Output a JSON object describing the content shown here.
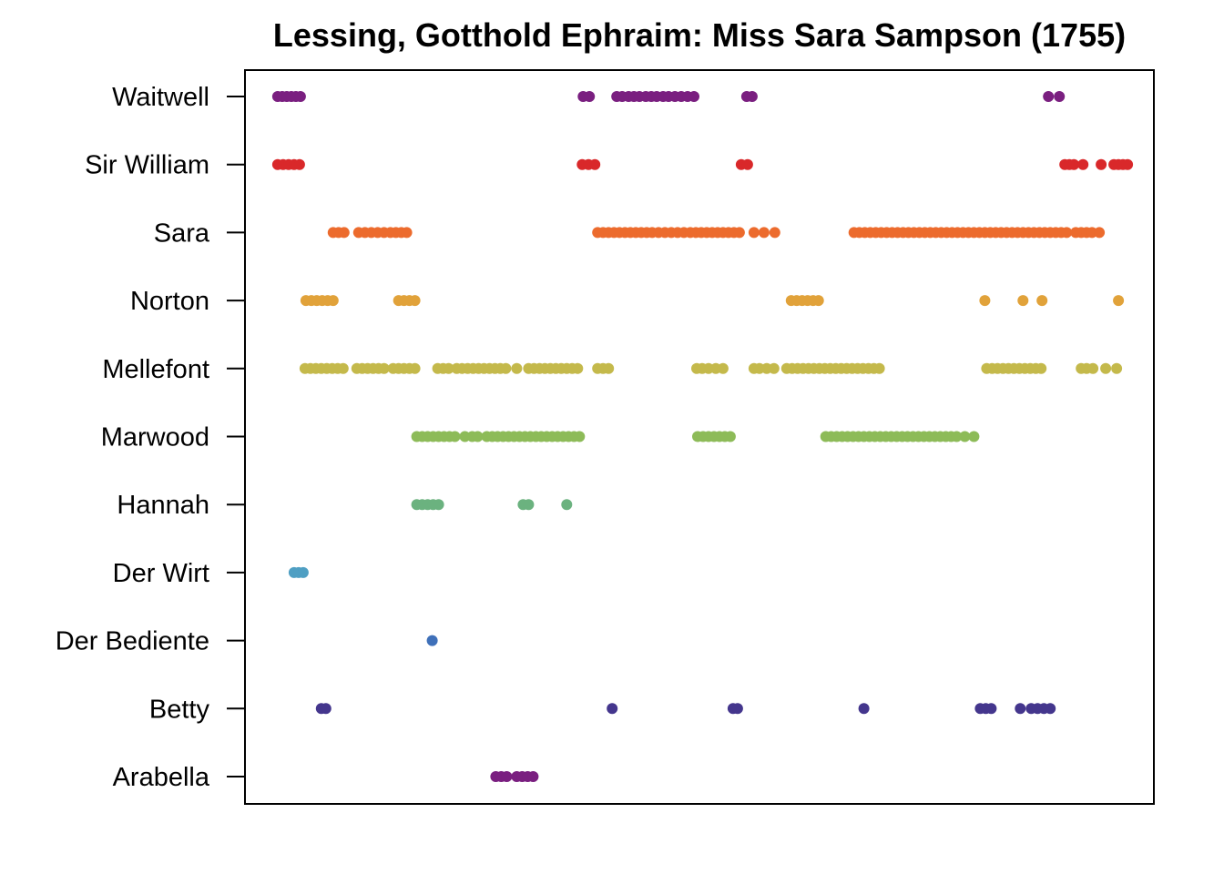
{
  "chart_data": {
    "type": "scatter",
    "title": "Lessing, Gotthold Ephraim: Miss Sara Sampson (1755)",
    "xlabel": "",
    "ylabel": "",
    "x_axis_shown": false,
    "xlim": [
      0,
      100
    ],
    "grid": false,
    "legend": "none",
    "categories": [
      "Waitwell",
      "Sir William",
      "Sara",
      "Norton",
      "Mellefont",
      "Marwood",
      "Hannah",
      "Der Wirt",
      "Der Bediente",
      "Betty",
      "Arabella"
    ],
    "series": [
      {
        "color": "#7a1f80",
        "x": [
          3.6,
          4.1,
          4.6,
          5.1,
          5.6,
          6.1,
          37.2,
          37.9,
          40.9,
          41.5,
          42.2,
          42.8,
          43.4,
          44.1,
          44.7,
          45.3,
          46.0,
          46.6,
          47.3,
          48.0,
          48.7,
          49.4,
          55.2,
          55.8,
          88.4,
          89.6
        ]
      },
      {
        "color": "#d9282a",
        "x": [
          3.6,
          4.2,
          4.8,
          5.4,
          6.0,
          37.1,
          37.8,
          38.5,
          54.6,
          55.3,
          90.2,
          90.7,
          91.2,
          92.2,
          94.2,
          95.6,
          96.1,
          96.6,
          97.1
        ]
      },
      {
        "color": "#ec6b2d",
        "x": [
          9.7,
          10.3,
          10.9,
          12.5,
          13.2,
          13.9,
          14.6,
          15.3,
          16.0,
          16.6,
          17.2,
          17.8,
          38.8,
          39.4,
          40.0,
          40.6,
          41.2,
          41.8,
          42.4,
          43.0,
          43.6,
          44.2,
          44.8,
          45.5,
          46.2,
          46.9,
          47.6,
          48.3,
          49.0,
          49.6,
          50.2,
          50.8,
          51.4,
          52.0,
          52.6,
          53.2,
          53.8,
          54.4,
          56.0,
          57.1,
          58.3,
          67.0,
          67.6,
          68.2,
          68.8,
          69.4,
          70.0,
          70.6,
          71.2,
          71.8,
          72.4,
          73.0,
          73.6,
          74.2,
          74.8,
          75.4,
          76.0,
          76.6,
          77.2,
          77.8,
          78.4,
          79.0,
          79.6,
          80.2,
          80.8,
          81.4,
          82.0,
          82.6,
          83.2,
          83.8,
          84.4,
          85.0,
          85.6,
          86.2,
          86.8,
          87.4,
          88.0,
          88.6,
          89.2,
          89.8,
          90.4,
          91.4,
          92.0,
          92.6,
          93.2,
          94.0
        ]
      },
      {
        "color": "#e1a23a",
        "x": [
          6.7,
          7.3,
          7.9,
          8.5,
          9.1,
          9.7,
          16.9,
          17.5,
          18.1,
          18.7,
          60.1,
          60.7,
          61.3,
          61.9,
          62.5,
          63.1,
          81.4,
          85.6,
          87.7,
          96.1
        ]
      },
      {
        "color": "#c4b94b",
        "x": [
          6.6,
          7.2,
          7.8,
          8.4,
          9.0,
          9.6,
          10.2,
          10.8,
          12.3,
          12.9,
          13.5,
          14.1,
          14.7,
          15.3,
          16.3,
          16.9,
          17.5,
          18.1,
          18.7,
          21.2,
          21.8,
          22.4,
          23.3,
          23.9,
          24.5,
          25.1,
          25.7,
          26.3,
          26.9,
          27.5,
          28.1,
          28.7,
          29.9,
          31.2,
          31.8,
          32.4,
          33.0,
          33.6,
          34.2,
          34.8,
          35.4,
          36.0,
          36.6,
          38.8,
          39.4,
          40.0,
          49.7,
          50.3,
          51.0,
          51.8,
          52.6,
          56.0,
          56.6,
          57.4,
          58.2,
          59.6,
          60.2,
          60.8,
          61.4,
          62.0,
          62.6,
          63.2,
          63.8,
          64.4,
          65.0,
          65.6,
          66.2,
          66.8,
          67.4,
          68.0,
          68.6,
          69.2,
          69.8,
          81.6,
          82.2,
          82.8,
          83.4,
          84.0,
          84.6,
          85.2,
          85.8,
          86.4,
          87.0,
          87.6,
          92.0,
          92.6,
          93.3,
          94.7,
          95.9
        ]
      },
      {
        "color": "#8dbb58",
        "x": [
          18.9,
          19.5,
          20.1,
          20.7,
          21.3,
          21.9,
          22.5,
          23.1,
          24.2,
          25.0,
          25.6,
          26.6,
          27.2,
          27.8,
          28.4,
          29.0,
          29.6,
          30.2,
          30.8,
          31.4,
          32.0,
          32.6,
          33.2,
          33.8,
          34.4,
          35.0,
          35.6,
          36.2,
          36.8,
          49.8,
          50.4,
          51.0,
          51.6,
          52.2,
          52.8,
          53.4,
          63.9,
          64.5,
          65.1,
          65.7,
          66.3,
          66.9,
          67.5,
          68.1,
          68.7,
          69.3,
          69.9,
          70.5,
          71.1,
          71.7,
          72.3,
          72.9,
          73.5,
          74.1,
          74.7,
          75.3,
          75.9,
          76.5,
          77.1,
          77.7,
          78.3,
          79.2,
          80.2
        ]
      },
      {
        "color": "#6bb27f",
        "x": [
          18.9,
          19.5,
          20.1,
          20.7,
          21.3,
          30.6,
          31.2,
          35.4
        ]
      },
      {
        "color": "#4f9fc3",
        "x": [
          5.4,
          5.9,
          6.4
        ]
      },
      {
        "color": "#3f70b9",
        "x": [
          20.6
        ]
      },
      {
        "color": "#44368d",
        "x": [
          8.4,
          8.9,
          40.4,
          53.7,
          54.2,
          68.1,
          80.9,
          81.5,
          82.1,
          85.3,
          86.5,
          87.2,
          87.9,
          88.6
        ]
      },
      {
        "color": "#7a1f80",
        "x": [
          27.6,
          28.2,
          28.8,
          29.9,
          30.5,
          31.1,
          31.7
        ]
      }
    ]
  }
}
